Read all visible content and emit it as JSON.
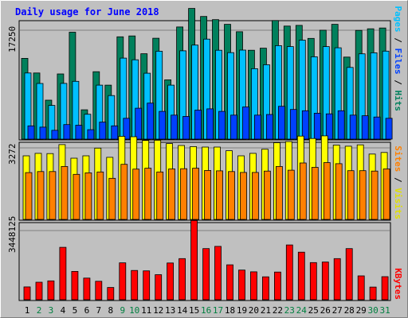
{
  "colors": {
    "background": "#c0c0c0",
    "title": "#0000ff",
    "hits": "#00805c",
    "files": "#00c0ff",
    "pages": "#0040ff",
    "visits": "#ffff00",
    "sites": "#ff8000",
    "kbytes": "#ff0000",
    "weekday_label": "#000000",
    "weekend_label": "#008040"
  },
  "chart_data": [
    {
      "type": "bar",
      "title": "Daily usage for June 2018",
      "panel": "hits-files-pages",
      "categories": [
        "1",
        "2",
        "3",
        "4",
        "5",
        "6",
        "7",
        "8",
        "9",
        "10",
        "11",
        "12",
        "13",
        "14",
        "15",
        "16",
        "17",
        "18",
        "19",
        "20",
        "21",
        "22",
        "23",
        "24",
        "25",
        "26",
        "27",
        "28",
        "29",
        "30",
        "31"
      ],
      "weekend_days": [
        "2",
        "3",
        "9",
        "10",
        "16",
        "17",
        "23",
        "24",
        "30",
        "31"
      ],
      "ytick": 17250,
      "ymax": 17250,
      "series": [
        {
          "name": "Hits",
          "color_key": "hits",
          "values": [
            12790,
            10480,
            6170,
            10320,
            16940,
            4640,
            10680,
            8550,
            16210,
            16340,
            13520,
            15980,
            9390,
            17770,
            20700,
            19430,
            18920,
            18180,
            17010,
            14080,
            14400,
            18780,
            17910,
            18020,
            15950,
            17250,
            18180,
            13000,
            17220,
            17480,
            17600
          ]
        },
        {
          "name": "Files",
          "color_key": "files",
          "values": [
            10480,
            8820,
            5340,
            8830,
            9160,
            3940,
            8550,
            6900,
            12830,
            12560,
            10440,
            13920,
            8550,
            13990,
            14900,
            15840,
            14080,
            13700,
            14100,
            11150,
            11780,
            14810,
            14650,
            15680,
            13050,
            14650,
            14470,
            11360,
            13510,
            13680,
            13940
          ]
        },
        {
          "name": "Pages",
          "color_key": "pages",
          "values": [
            2100,
            1900,
            1400,
            2300,
            2200,
            1500,
            2700,
            2100,
            3300,
            4900,
            5700,
            4400,
            3800,
            3600,
            4600,
            4800,
            4400,
            3800,
            5100,
            3800,
            3900,
            5200,
            4700,
            4500,
            4100,
            4000,
            4500,
            3800,
            3700,
            3500,
            3300
          ]
        }
      ]
    },
    {
      "type": "bar",
      "panel": "visits-sites",
      "categories": [
        "1",
        "2",
        "3",
        "4",
        "5",
        "6",
        "7",
        "8",
        "9",
        "10",
        "11",
        "12",
        "13",
        "14",
        "15",
        "16",
        "17",
        "18",
        "19",
        "20",
        "21",
        "22",
        "23",
        "24",
        "25",
        "26",
        "27",
        "28",
        "29",
        "30",
        "31"
      ],
      "ytick": 3272,
      "ymax": 3272,
      "series": [
        {
          "name": "Visits",
          "color_key": "visits",
          "values": [
            2910,
            3020,
            3010,
            3420,
            2800,
            2910,
            3260,
            2840,
            3800,
            3780,
            3610,
            3620,
            3470,
            3380,
            3330,
            3310,
            3310,
            3140,
            2910,
            3020,
            3210,
            3510,
            3560,
            3810,
            3700,
            3820,
            3400,
            3350,
            3410,
            2990,
            3060
          ]
        },
        {
          "name": "Sites",
          "color_key": "sites",
          "values": [
            2140,
            2190,
            2190,
            2420,
            2060,
            2130,
            2170,
            1880,
            2520,
            2300,
            2340,
            2170,
            2310,
            2320,
            2340,
            2240,
            2220,
            2190,
            2150,
            2150,
            2210,
            2420,
            2250,
            2580,
            2380,
            2600,
            2550,
            2230,
            2230,
            2210,
            2310
          ]
        }
      ]
    },
    {
      "type": "bar",
      "panel": "kbytes",
      "categories": [
        "1",
        "2",
        "3",
        "4",
        "5",
        "6",
        "7",
        "8",
        "9",
        "10",
        "11",
        "12",
        "13",
        "14",
        "15",
        "16",
        "17",
        "18",
        "19",
        "20",
        "21",
        "22",
        "23",
        "24",
        "25",
        "26",
        "27",
        "28",
        "29",
        "30",
        "31"
      ],
      "ytick": 3448125,
      "ymax": 3448125,
      "series": [
        {
          "name": "KBytes",
          "color_key": "kbytes",
          "values": [
            640000,
            870000,
            940000,
            2610000,
            1410000,
            1080000,
            920000,
            610000,
            1840000,
            1460000,
            1440000,
            1250000,
            1830000,
            2050000,
            3950000,
            2550000,
            2660000,
            1740000,
            1480000,
            1390000,
            1140000,
            1380000,
            2730000,
            2370000,
            1850000,
            1880000,
            2050000,
            2550000,
            1190000,
            630000,
            1150000
          ]
        }
      ]
    }
  ]
}
